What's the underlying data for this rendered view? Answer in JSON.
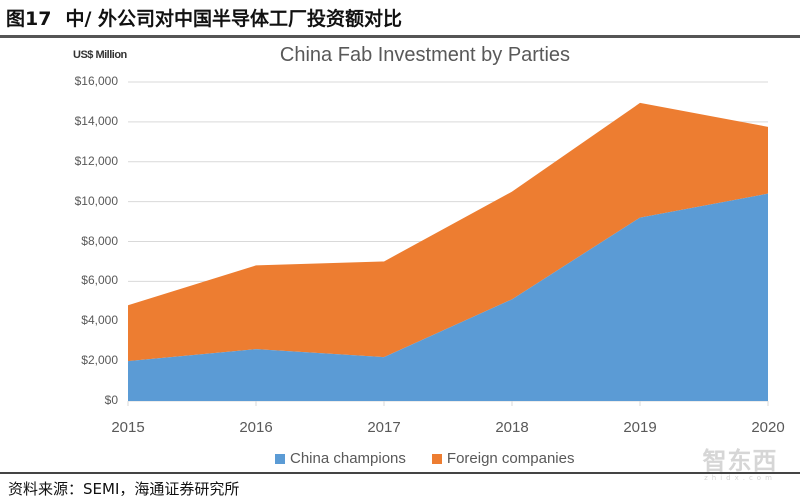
{
  "header": {
    "figure_number": "图17",
    "figure_title": "中/ 外公司对中国半导体工厂投资额对比"
  },
  "footer": {
    "source": "资料来源：SEMI，海通证券研究所"
  },
  "watermark": {
    "main": "智东西",
    "sub": "zhidx.com"
  },
  "colors": {
    "china_champions": "#5b9bd5",
    "foreign_companies": "#ed7d31",
    "gridline": "#d9d9d9",
    "axis_text": "#595959"
  },
  "chart_data": {
    "type": "area",
    "stacked": true,
    "title": "China Fab Investment by Parties",
    "unit_label": "US$ Million",
    "xlabel": "",
    "ylabel": "US$ Million",
    "ylim": [
      0,
      16000
    ],
    "y_tick_labels": [
      "$16,000",
      "$14,000",
      "$12,000",
      "$10,000",
      "$8,000",
      "$6,000",
      "$4,000",
      "$2,000",
      "$0"
    ],
    "y_tick_values": [
      16000,
      14000,
      12000,
      10000,
      8000,
      6000,
      4000,
      2000,
      0
    ],
    "categories": [
      "2015",
      "2016",
      "2017",
      "2018",
      "2019",
      "2020"
    ],
    "series": [
      {
        "name": "China champions",
        "values": [
          2000,
          2600,
          2200,
          5100,
          9200,
          10400
        ]
      },
      {
        "name": "Foreign companies",
        "values": [
          2800,
          4200,
          4800,
          5400,
          5750,
          3350
        ]
      }
    ],
    "totals": [
      4800,
      6800,
      7000,
      10500,
      14950,
      13750
    ],
    "grid": true,
    "legend_position": "bottom"
  }
}
